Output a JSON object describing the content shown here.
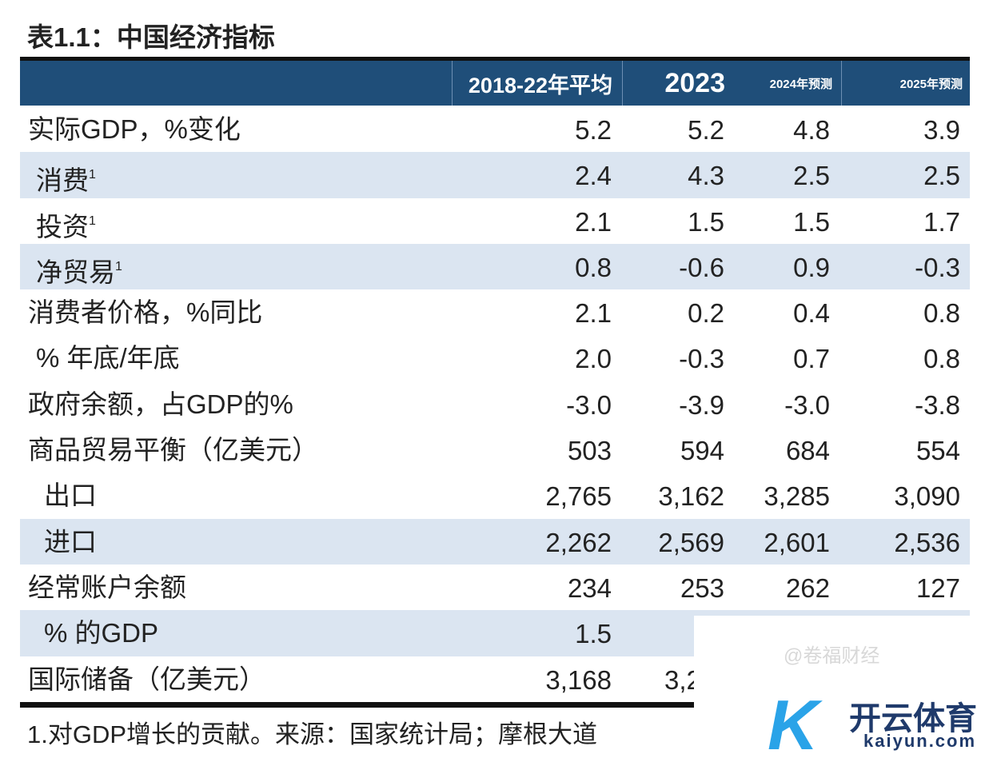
{
  "title": "表1.1：中国经济指标",
  "columns": [
    "2018-22年平均",
    "2023",
    "2024年预测",
    "2025年预测"
  ],
  "rows": [
    {
      "label": "实际GDP，%变化",
      "sup": "",
      "indent": 0,
      "values": [
        "5.2",
        "5.2",
        "4.8",
        "3.9"
      ]
    },
    {
      "label": "消费",
      "sup": "1",
      "indent": 1,
      "values": [
        "2.4",
        "4.3",
        "2.5",
        "2.5"
      ]
    },
    {
      "label": "投资",
      "sup": "1",
      "indent": 1,
      "values": [
        "2.1",
        "1.5",
        "1.5",
        "1.7"
      ]
    },
    {
      "label": "净贸易",
      "sup": "1",
      "indent": 1,
      "values": [
        "0.8",
        "-0.6",
        "0.9",
        "-0.3"
      ]
    },
    {
      "label": "消费者价格，%同比",
      "sup": "",
      "indent": 0,
      "values": [
        "2.1",
        "0.2",
        "0.4",
        "0.8"
      ]
    },
    {
      "label": "% 年底/年底",
      "sup": "",
      "indent": 1,
      "values": [
        "2.0",
        "-0.3",
        "0.7",
        "0.8"
      ]
    },
    {
      "label": "政府余额，占GDP的%",
      "sup": "",
      "indent": 0,
      "values": [
        "-3.0",
        "-3.9",
        "-3.0",
        "-3.8"
      ]
    },
    {
      "label": "商品贸易平衡（亿美元）",
      "sup": "",
      "indent": 0,
      "values": [
        "503",
        "594",
        "684",
        "554"
      ]
    },
    {
      "label": "出口",
      "sup": "",
      "indent": 2,
      "values": [
        "2,765",
        "3,162",
        "3,285",
        "3,090"
      ]
    },
    {
      "label": "进口",
      "sup": "",
      "indent": 2,
      "values": [
        "2,262",
        "2,569",
        "2,601",
        "2,536"
      ]
    },
    {
      "label": "经常账户余额",
      "sup": "",
      "indent": 0,
      "values": [
        "234",
        "253",
        "262",
        "127"
      ]
    },
    {
      "label": "% 的GDP",
      "sup": "",
      "indent": 2,
      "values": [
        "1.5",
        "",
        "",
        ""
      ]
    },
    {
      "label": "国际储备（亿美元）",
      "sup": "",
      "indent": 0,
      "values": [
        "3,168",
        "3,2",
        "",
        ""
      ]
    }
  ],
  "footnote": "1.对GDP增长的贡献。来源：国家统计局；摩根大道",
  "watermark": {
    "logo": "开云体育",
    "url": "kaiyun.com",
    "handle": "@卷福财经"
  }
}
